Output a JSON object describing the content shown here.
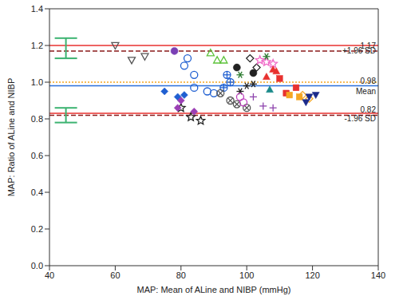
{
  "chart_data": {
    "type": "scatter",
    "x_label": "MAP: Mean of ALine and NIBP (mmHg)",
    "y_label": "MAP: Ratio of ALine and NIBP",
    "xlim": [
      40,
      140
    ],
    "xticks": [
      40,
      60,
      80,
      100,
      120,
      140
    ],
    "ylim": [
      0,
      1.4
    ],
    "yticks": [
      {
        "value": 0,
        "label": "0.0"
      },
      0.2,
      0.4,
      0.6,
      0.8,
      {
        "value": 1,
        "label": "1.0"
      },
      1.2,
      1.4
    ],
    "grid": false,
    "reference_lines": [
      {
        "value": 1.2,
        "color": "#e8312f",
        "line_style": "solid",
        "label_above": "+1.96 SD"
      },
      {
        "value": 1.17,
        "color": "#8b1a1a",
        "line_style": "dashed",
        "label_below": "1.17"
      },
      {
        "value": 1.0,
        "color": "#f5a623",
        "line_style": "dotted"
      },
      {
        "value": 0.98,
        "color": "#2a6fdb",
        "line_style": "solid",
        "label_above": "Mean",
        "label_below": "0.98"
      },
      {
        "value": 0.83,
        "color": "#e8312f",
        "line_style": "solid",
        "label_above": "-1.96 SD"
      },
      {
        "value": 0.82,
        "color": "#8b1a1a",
        "line_style": "dashed",
        "label_below": "0.82"
      }
    ],
    "intervals": {
      "color": "#3cb371",
      "items": [
        {
          "x": 45,
          "low": 1.13,
          "high": 1.24
        },
        {
          "x": 45,
          "low": 0.78,
          "high": 0.86
        }
      ]
    },
    "series": [
      {
        "color": "#555555",
        "marker": "triangle_down_open",
        "x": [
          60,
          65,
          69
        ],
        "y": [
          1.2,
          1.12,
          1.14
        ]
      },
      {
        "color": "#222222",
        "marker": "star_open",
        "x": [
          80,
          83,
          86
        ],
        "y": [
          0.86,
          0.81,
          0.79
        ]
      },
      {
        "color": "#1f5fd1",
        "marker": "diamond",
        "x": [
          75,
          79,
          81
        ],
        "y": [
          0.95,
          0.92,
          0.93
        ]
      },
      {
        "color": "#9b3fb5",
        "marker": "diamond",
        "x": [
          79,
          80,
          84
        ],
        "y": [
          0.86,
          0.9,
          0.84
        ]
      },
      {
        "color": "#1f5fd1",
        "marker": "circle_open",
        "x": [
          81,
          82,
          84
        ],
        "y": [
          1.09,
          1.13,
          1.04
        ]
      },
      {
        "color": "#7a3fb5",
        "marker": "circle",
        "x": [
          78
        ],
        "y": [
          1.17
        ]
      },
      {
        "color": "#5cc23a",
        "marker": "triangle_open",
        "x": [
          89,
          91,
          93
        ],
        "y": [
          1.16,
          1.12,
          1.12
        ]
      },
      {
        "color": "#1f5fd1",
        "marker": "circle_open",
        "x": [
          84,
          88,
          90
        ],
        "y": [
          0.97,
          0.95,
          0.94
        ]
      },
      {
        "color": "#1f5fd1",
        "marker": "circle_cross",
        "x": [
          93,
          95,
          94
        ],
        "y": [
          0.97,
          1.0,
          1.04
        ]
      },
      {
        "color": "#555555",
        "marker": "circle_x",
        "x": [
          92,
          95,
          97,
          100
        ],
        "y": [
          0.94,
          0.9,
          0.88,
          0.86
        ]
      },
      {
        "color": "#222222",
        "marker": "asterisk",
        "x": [
          98,
          100,
          102
        ],
        "y": [
          0.95,
          0.98,
          0.99
        ]
      },
      {
        "color": "#222222",
        "marker": "diamond_open",
        "x": [
          101,
          103
        ],
        "y": [
          1.13,
          1.08
        ]
      },
      {
        "color": "#222222",
        "marker": "circle",
        "x": [
          97,
          102
        ],
        "y": [
          1.08,
          1.05
        ]
      },
      {
        "color": "#f06ac8",
        "marker": "star_open",
        "x": [
          104,
          106,
          108
        ],
        "y": [
          1.12,
          1.11,
          1.1
        ]
      },
      {
        "color": "#e8312f",
        "marker": "triangle",
        "x": [
          106,
          108,
          109
        ],
        "y": [
          1.03,
          1.07,
          1.06
        ]
      },
      {
        "color": "#8e44ad",
        "marker": "cross",
        "x": [
          102,
          105,
          108
        ],
        "y": [
          0.92,
          0.87,
          0.86
        ]
      },
      {
        "color": "#1a8a8a",
        "marker": "triangle",
        "x": [
          107
        ],
        "y": [
          0.96
        ]
      },
      {
        "color": "#e8312f",
        "marker": "square",
        "x": [
          110,
          112,
          115
        ],
        "y": [
          1.02,
          0.94,
          0.97
        ]
      },
      {
        "color": "#f5a623",
        "marker": "square",
        "x": [
          113,
          116
        ],
        "y": [
          0.93,
          0.92
        ]
      },
      {
        "color": "#f5a623",
        "marker": "diamond_open",
        "x": [
          117,
          119
        ],
        "y": [
          0.93,
          0.91
        ]
      },
      {
        "color": "#1b2a8a",
        "marker": "triangle_down",
        "x": [
          119,
          121,
          118
        ],
        "y": [
          0.92,
          0.93,
          0.89
        ]
      },
      {
        "color": "#2e7d32",
        "marker": "asterisk",
        "x": [
          106,
          98
        ],
        "y": [
          1.14,
          1.04
        ]
      },
      {
        "color": "#c040c0",
        "marker": "circle_open",
        "x": [
          99,
          98
        ],
        "y": [
          0.89,
          0.92
        ]
      }
    ]
  }
}
